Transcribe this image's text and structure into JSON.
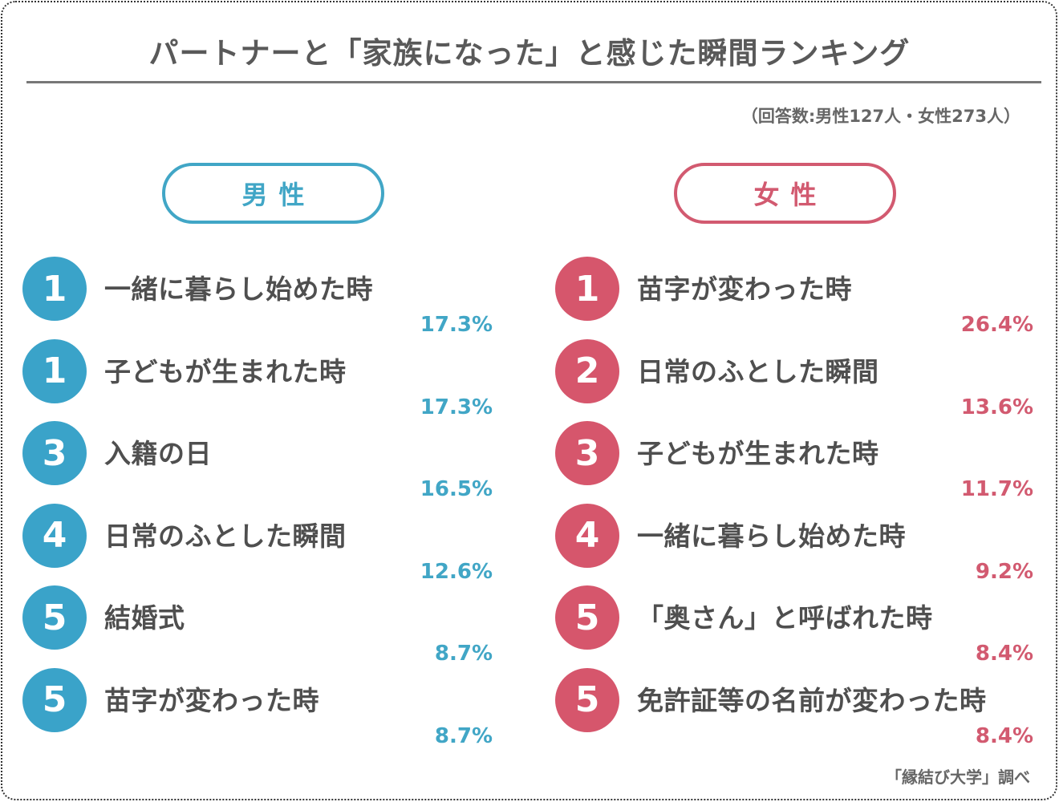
{
  "header": {
    "title": "パートナーと「家族になった」と感じた瞬間ランキング",
    "respondents": "（回答数:男性127人・女性273人）"
  },
  "colors": {
    "male_accent": "#41a6c6",
    "female_accent": "#d25a70",
    "text": "#4f4f4f"
  },
  "male": {
    "heading": "男性",
    "items": [
      {
        "rank": "1",
        "label": "一緒に暮らし始めた時",
        "pct": "17.3%"
      },
      {
        "rank": "1",
        "label": "子どもが生まれた時",
        "pct": "17.3%"
      },
      {
        "rank": "3",
        "label": "入籍の日",
        "pct": "16.5%"
      },
      {
        "rank": "4",
        "label": "日常のふとした瞬間",
        "pct": "12.6%"
      },
      {
        "rank": "5",
        "label": "結婚式",
        "pct": "8.7%"
      },
      {
        "rank": "5",
        "label": "苗字が変わった時",
        "pct": "8.7%"
      }
    ]
  },
  "female": {
    "heading": "女性",
    "items": [
      {
        "rank": "1",
        "label": "苗字が変わった時",
        "pct": "26.4%"
      },
      {
        "rank": "2",
        "label": "日常のふとした瞬間",
        "pct": "13.6%"
      },
      {
        "rank": "3",
        "label": "子どもが生まれた時",
        "pct": "11.7%"
      },
      {
        "rank": "4",
        "label": "一緒に暮らし始めた時",
        "pct": "9.2%"
      },
      {
        "rank": "5",
        "label": "「奥さん」と呼ばれた時",
        "pct": "8.4%"
      },
      {
        "rank": "5",
        "label": "免許証等の名前が変わった時",
        "pct": "8.4%"
      }
    ]
  },
  "footer": {
    "source": "「縁結び大学」調べ"
  },
  "chart_data": {
    "type": "table",
    "title": "パートナーと「家族になった」と感じた瞬間ランキング",
    "subtitle": "（回答数:男性127人・女性273人）",
    "series": [
      {
        "name": "男性",
        "categories": [
          "一緒に暮らし始めた時",
          "子どもが生まれた時",
          "入籍の日",
          "日常のふとした瞬間",
          "結婚式",
          "苗字が変わった時"
        ],
        "ranks": [
          1,
          1,
          3,
          4,
          5,
          5
        ],
        "values": [
          17.3,
          17.3,
          16.5,
          12.6,
          8.7,
          8.7
        ]
      },
      {
        "name": "女性",
        "categories": [
          "苗字が変わった時",
          "日常のふとした瞬間",
          "子どもが生まれた時",
          "一緒に暮らし始めた時",
          "「奥さん」と呼ばれた時",
          "免許証等の名前が変わった時"
        ],
        "ranks": [
          1,
          2,
          3,
          4,
          5,
          5
        ],
        "values": [
          26.4,
          13.6,
          11.7,
          9.2,
          8.4,
          8.4
        ]
      }
    ],
    "unit": "%",
    "source": "「縁結び大学」調べ"
  }
}
